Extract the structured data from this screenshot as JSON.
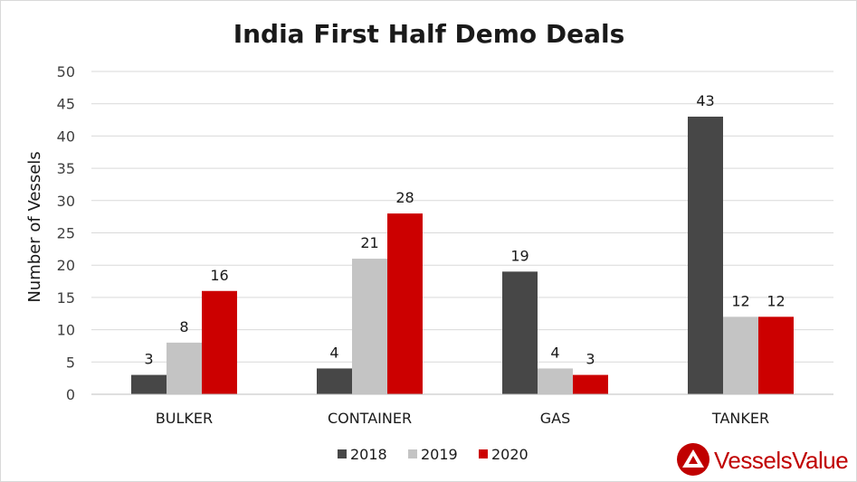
{
  "chart_data": {
    "type": "bar",
    "title": "India First Half Demo Deals",
    "xlabel": "",
    "ylabel": "Number of Vessels",
    "categories": [
      "BULKER",
      "CONTAINER",
      "GAS",
      "TANKER"
    ],
    "series": [
      {
        "name": "2018",
        "values": [
          3,
          4,
          19,
          43
        ],
        "color": "#474747"
      },
      {
        "name": "2019",
        "values": [
          8,
          21,
          4,
          12
        ],
        "color": "#c4c4c4"
      },
      {
        "name": "2020",
        "values": [
          16,
          28,
          3,
          12
        ],
        "color": "#cc0000"
      }
    ],
    "ylim": [
      0,
      50
    ],
    "yticks": [
      0,
      5,
      10,
      15,
      20,
      25,
      30,
      35,
      40,
      45,
      50
    ],
    "grid": true,
    "legend_position": "bottom",
    "data_labels": true
  },
  "logo": {
    "text": "VesselsValue",
    "color": "#c00000"
  }
}
